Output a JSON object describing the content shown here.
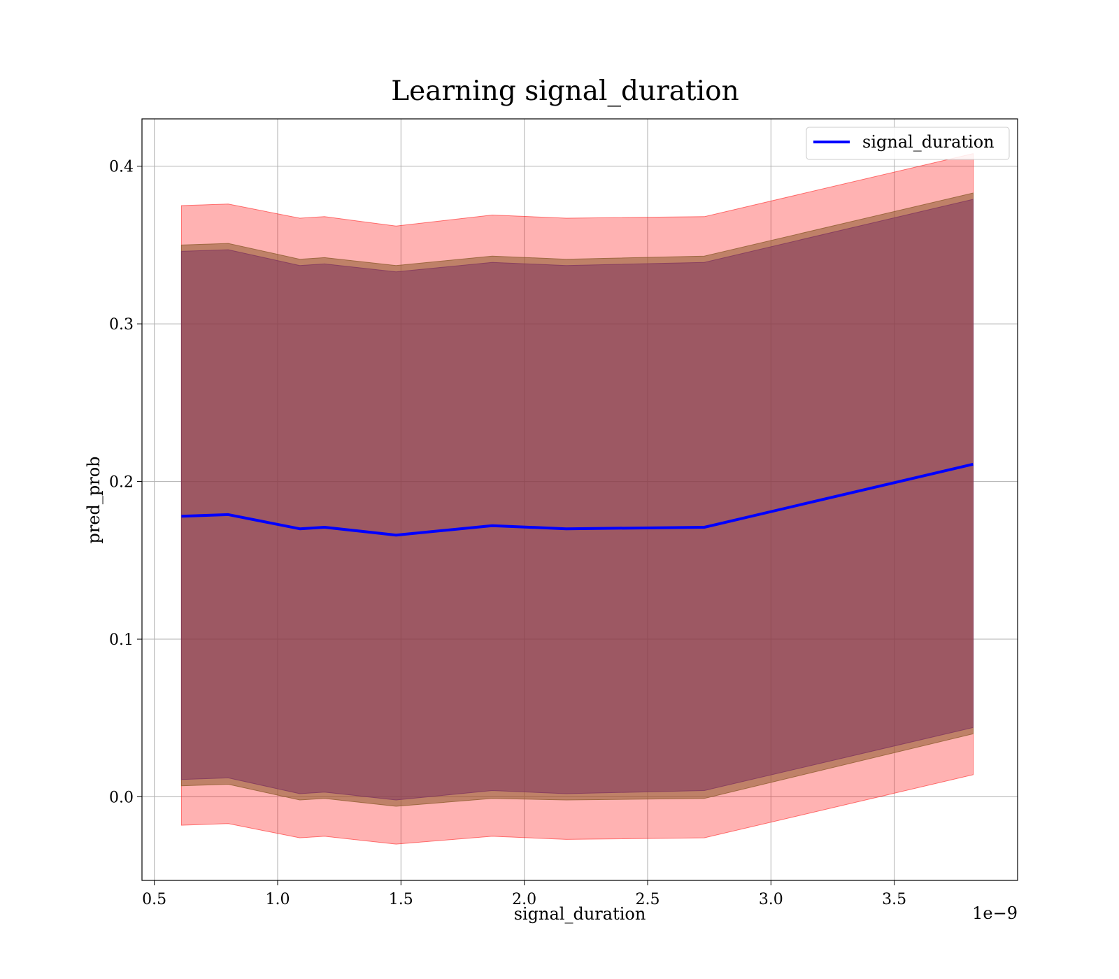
{
  "chart_data": {
    "type": "line",
    "title": "Learning signal_duration",
    "xlabel": "signal_duration",
    "ylabel": "pred_prob",
    "x_offset_label": "1e−9",
    "xlim": [
      0.45,
      4.0
    ],
    "ylim": [
      -0.053,
      0.43
    ],
    "x_ticks": [
      0.5,
      1.0,
      1.5,
      2.0,
      2.5,
      3.0,
      3.5
    ],
    "x_tick_labels": [
      "0.5",
      "1.0",
      "1.5",
      "2.0",
      "2.5",
      "3.0",
      "3.5"
    ],
    "y_ticks": [
      0.0,
      0.1,
      0.2,
      0.3,
      0.4
    ],
    "y_tick_labels": [
      "0.0",
      "0.1",
      "0.2",
      "0.3",
      "0.4"
    ],
    "grid": true,
    "legend_position": "top-right",
    "x": [
      0.61,
      0.8,
      1.09,
      1.19,
      1.48,
      1.87,
      2.17,
      2.73,
      3.82
    ],
    "series": [
      {
        "name": "signal_duration",
        "color": "#0000ff",
        "values": [
          0.178,
          0.179,
          0.17,
          0.171,
          0.166,
          0.172,
          0.17,
          0.171,
          0.211
        ]
      }
    ],
    "bands": [
      {
        "color": "#ff0000",
        "opacity": 0.3,
        "upper": [
          0.375,
          0.376,
          0.367,
          0.368,
          0.362,
          0.369,
          0.367,
          0.368,
          0.408
        ],
        "lower": [
          -0.018,
          -0.017,
          -0.026,
          -0.025,
          -0.03,
          -0.025,
          -0.027,
          -0.026,
          0.014
        ]
      },
      {
        "color": "#8b5a2b",
        "opacity": 0.55,
        "upper": [
          0.35,
          0.351,
          0.341,
          0.342,
          0.337,
          0.343,
          0.341,
          0.343,
          0.383
        ],
        "lower": [
          0.007,
          0.008,
          -0.002,
          -0.001,
          -0.006,
          -0.001,
          -0.002,
          -0.001,
          0.04
        ]
      },
      {
        "color": "#7b2f5e",
        "opacity": 0.5,
        "upper": [
          0.346,
          0.347,
          0.337,
          0.338,
          0.333,
          0.339,
          0.337,
          0.339,
          0.379
        ],
        "lower": [
          0.011,
          0.012,
          0.002,
          0.003,
          -0.002,
          0.004,
          0.002,
          0.004,
          0.044
        ]
      }
    ]
  }
}
